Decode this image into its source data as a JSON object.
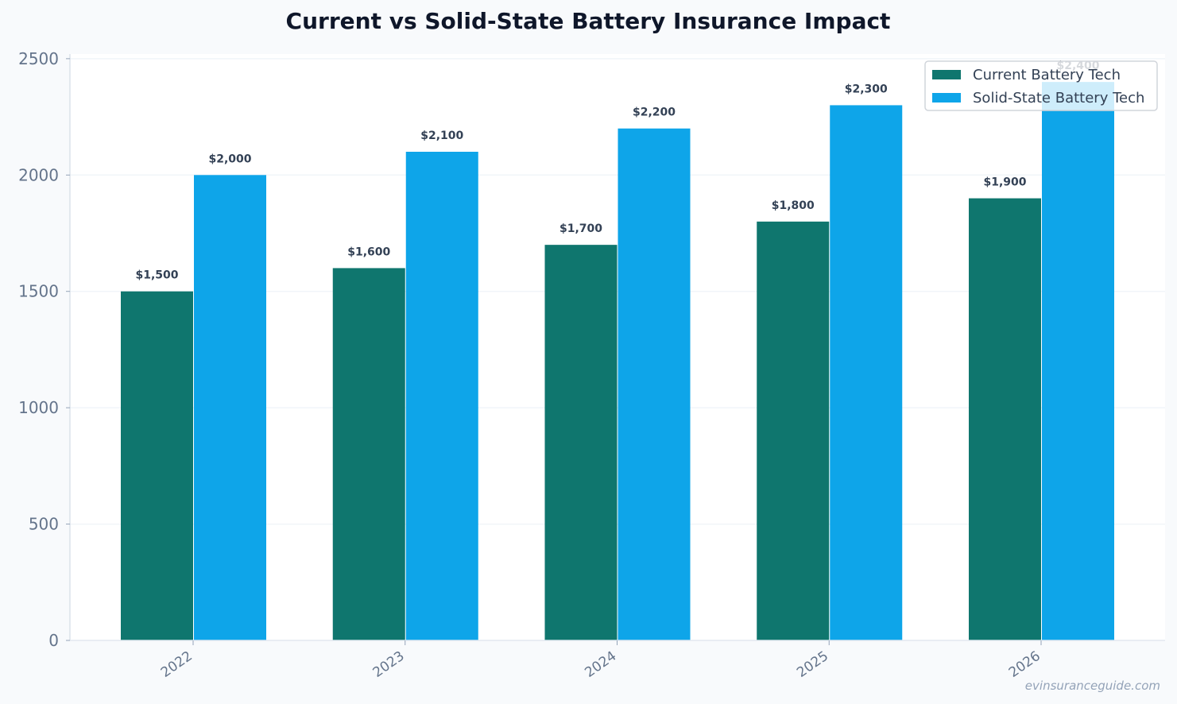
{
  "chart_data": {
    "type": "bar",
    "title": "Current vs Solid-State Battery Insurance Impact",
    "categories": [
      "2022",
      "2023",
      "2024",
      "2025",
      "2026"
    ],
    "series": [
      {
        "name": "Current Battery Tech",
        "color": "#0f766e",
        "values": [
          1500,
          1600,
          1700,
          1800,
          1900
        ],
        "labels": [
          "$1,500",
          "$1,600",
          "$1,700",
          "$1,800",
          "$1,900"
        ]
      },
      {
        "name": "Solid-State Battery Tech",
        "color": "#0ea5e9",
        "values": [
          2000,
          2100,
          2200,
          2300,
          2400
        ],
        "labels": [
          "$2,000",
          "$2,100",
          "$2,200",
          "$2,300",
          "$2,400"
        ]
      }
    ],
    "y_ticks": [
      "0",
      "500",
      "1000",
      "1500",
      "2000",
      "2500"
    ],
    "y_tick_values": [
      0,
      500,
      1000,
      1500,
      2000,
      2500
    ],
    "ylim": [
      0,
      2520
    ],
    "xlabel": "",
    "ylabel": "",
    "legend_position": "top-right",
    "grid": true,
    "watermark": "evinsuranceguide.com"
  }
}
